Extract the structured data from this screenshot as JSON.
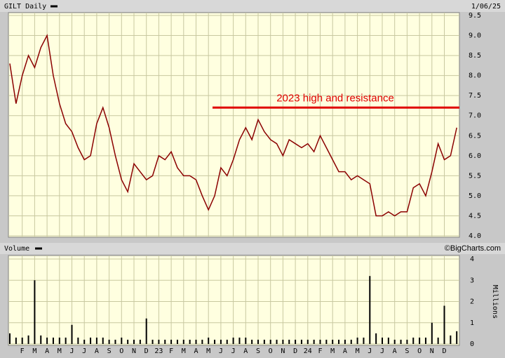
{
  "chart_data": {
    "type": "line",
    "title": "GILT Daily",
    "date": "1/06/25",
    "watermark": "©BigCharts.com",
    "categories": [
      null,
      null,
      "F",
      null,
      "M",
      null,
      "A",
      null,
      "M",
      null,
      "J",
      null,
      "J",
      null,
      "A",
      null,
      "S",
      null,
      "O",
      null,
      "N",
      null,
      "D",
      null,
      "23",
      null,
      "F",
      null,
      "M",
      null,
      "A",
      null,
      "M",
      null,
      "J",
      null,
      "J",
      null,
      "A",
      null,
      "S",
      null,
      "O",
      null,
      "N",
      null,
      "D",
      null,
      "24",
      null,
      "F",
      null,
      "M",
      null,
      "A",
      null,
      "M",
      null,
      "J",
      null,
      "J",
      null,
      "A",
      null,
      "S",
      null,
      "O",
      null,
      "N",
      null,
      "D",
      null,
      null
    ],
    "series": [
      {
        "name": "GILT",
        "color": "#8b0000",
        "values": [
          8.3,
          7.3,
          8.0,
          8.5,
          8.2,
          8.7,
          9.0,
          8.0,
          7.3,
          6.8,
          6.6,
          6.2,
          5.9,
          6.0,
          6.8,
          7.2,
          6.7,
          6.0,
          5.4,
          5.1,
          5.8,
          5.6,
          5.4,
          5.5,
          6.0,
          5.9,
          6.1,
          5.7,
          5.5,
          5.5,
          5.4,
          5.0,
          4.65,
          5.0,
          5.7,
          5.5,
          5.9,
          6.4,
          6.7,
          6.4,
          6.9,
          6.6,
          6.4,
          6.3,
          6.0,
          6.4,
          6.3,
          6.2,
          6.3,
          6.1,
          6.5,
          6.2,
          5.9,
          5.6,
          5.6,
          5.4,
          5.5,
          5.4,
          5.3,
          4.5,
          4.5,
          4.6,
          4.5,
          4.6,
          4.6,
          5.2,
          5.3,
          5.0,
          5.6,
          6.3,
          5.9,
          6.0,
          6.7
        ]
      }
    ],
    "ylim": [
      4,
      9.5
    ],
    "yticks": [
      {
        "value": 4,
        "label": "4.0"
      },
      4.5,
      {
        "value": 5,
        "label": "5.0"
      },
      5.5,
      {
        "value": 6,
        "label": "6.0"
      },
      6.5,
      {
        "value": 7,
        "label": "7.0"
      },
      7.5,
      {
        "value": 8,
        "label": "8.0"
      },
      8.5,
      {
        "value": 9,
        "label": "9.0"
      },
      9.5
    ],
    "annotation": {
      "text": "2023 high and resistance",
      "value": 7.2,
      "color": "#e00000"
    },
    "volume": {
      "title": "Volume",
      "axis_label": "Millions",
      "color": "#000000",
      "values": [
        0.5,
        0.3,
        0.3,
        0.4,
        3.0,
        0.4,
        0.3,
        0.3,
        0.3,
        0.3,
        0.9,
        0.3,
        0.2,
        0.3,
        0.3,
        0.3,
        0.2,
        0.2,
        0.3,
        0.2,
        0.2,
        0.2,
        1.2,
        0.2,
        0.2,
        0.2,
        0.2,
        0.2,
        0.2,
        0.2,
        0.2,
        0.2,
        0.3,
        0.2,
        0.2,
        0.2,
        0.3,
        0.3,
        0.3,
        0.2,
        0.2,
        0.2,
        0.2,
        0.2,
        0.2,
        0.2,
        0.2,
        0.2,
        0.2,
        0.2,
        0.2,
        0.2,
        0.2,
        0.2,
        0.2,
        0.2,
        0.3,
        0.3,
        3.2,
        0.5,
        0.3,
        0.3,
        0.2,
        0.2,
        0.2,
        0.3,
        0.3,
        0.3,
        1.0,
        0.3,
        1.8,
        0.4,
        0.6
      ],
      "ylim": [
        0,
        4
      ],
      "yticks": [
        0,
        1,
        2,
        3,
        4
      ]
    },
    "grid": true,
    "background": "#ffffe0"
  }
}
